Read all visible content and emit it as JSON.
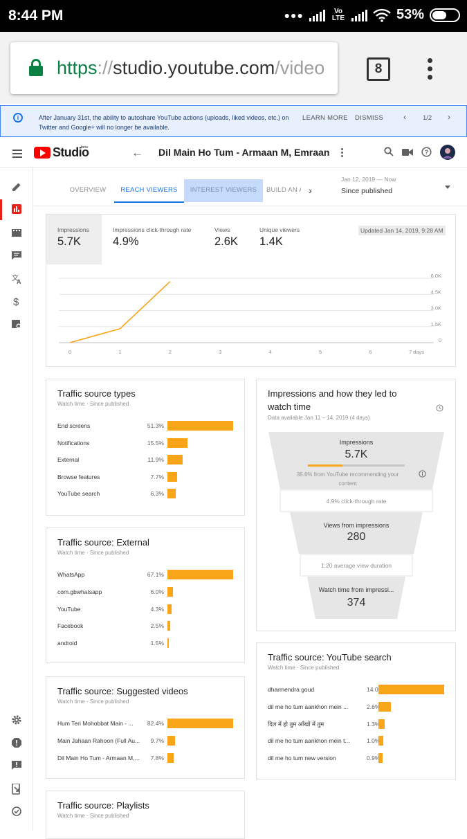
{
  "statusbar": {
    "time": "8:44 PM",
    "network": "Vo LTE",
    "battery": "53%"
  },
  "browser": {
    "url_scheme": "https",
    "url_sep": "://",
    "url_host": "studio.youtube.com",
    "url_path": "/video",
    "tab_count": "8"
  },
  "banner": {
    "message": "After January 31st, the ability to autoshare YouTube actions (uploads, liked videos, etc.) on Twitter and Google+ will no longer be available.",
    "learn_more": "LEARN MORE",
    "dismiss": "DISMISS",
    "pager": "1/2"
  },
  "header": {
    "logo": "Studio",
    "beta": "beta",
    "video_title": "Dil Main Ho Tum - Armaan M, Emraan H, Shreya | Cheat India"
  },
  "tabs": [
    {
      "label": "OVERVIEW"
    },
    {
      "label": "REACH VIEWERS"
    },
    {
      "label": "INTEREST VIEWERS"
    },
    {
      "label": "BUILD AN AUDIENCE"
    }
  ],
  "date": {
    "range": "Jan 12, 2019 — Now",
    "selected": "Since published"
  },
  "metrics": [
    {
      "label": "Impressions",
      "value": "5.7K"
    },
    {
      "label": "Impressions click-through rate",
      "value": "4.9%"
    },
    {
      "label": "Views",
      "value": "2.6K"
    },
    {
      "label": "Unique viewers",
      "value": "1.4K"
    }
  ],
  "updated": "Updated Jan 14, 2019, 9:28 AM",
  "chart_data": {
    "type": "line",
    "x": [
      0,
      1,
      2
    ],
    "series": [
      {
        "values": [
          0,
          1300,
          5700
        ],
        "color": "#f9a51a"
      }
    ],
    "x_ticks": [
      "0",
      "1",
      "2",
      "3",
      "4",
      "5",
      "6",
      "7 days"
    ],
    "y_ticks": [
      "0",
      "1.5K",
      "3.0K",
      "4.5K",
      "6.0K"
    ],
    "xlim": [
      0,
      7
    ],
    "ylim": [
      0,
      6000
    ],
    "grid": true
  },
  "traffic_source_types": {
    "title": "Traffic source types",
    "subtitle": "Watch time · Since published",
    "rows": [
      {
        "label": "End screens",
        "value": "51.3%",
        "pct": 51.3
      },
      {
        "label": "Notifications",
        "value": "15.5%",
        "pct": 15.5
      },
      {
        "label": "External",
        "value": "11.9%",
        "pct": 11.9
      },
      {
        "label": "Browse features",
        "value": "7.7%",
        "pct": 7.7
      },
      {
        "label": "YouTube search",
        "value": "6.3%",
        "pct": 6.3
      }
    ]
  },
  "traffic_external": {
    "title": "Traffic source: External",
    "subtitle": "Watch time · Since published",
    "rows": [
      {
        "label": "WhatsApp",
        "value": "67.1%",
        "pct": 67.1
      },
      {
        "label": "com.gbwhatsapp",
        "value": "6.0%",
        "pct": 6.0
      },
      {
        "label": "YouTube",
        "value": "4.3%",
        "pct": 4.3
      },
      {
        "label": "Facebook",
        "value": "2.5%",
        "pct": 2.5
      },
      {
        "label": "android",
        "value": "1.5%",
        "pct": 1.5
      }
    ]
  },
  "traffic_suggested": {
    "title": "Traffic source: Suggested videos",
    "subtitle": "Watch time · Since published",
    "rows": [
      {
        "label": "Hum Teri Mohobbat Main - ...",
        "value": "82.4%",
        "pct": 82.4
      },
      {
        "label": "Main Jahaan Rahoon (Full Au...",
        "value": "9.7%",
        "pct": 9.7
      },
      {
        "label": "Dil Main Ho Tum - Armaan M,...",
        "value": "7.8%",
        "pct": 7.8
      }
    ]
  },
  "traffic_playlists": {
    "title": "Traffic source: Playlists",
    "subtitle": "Watch time · Since published"
  },
  "funnel": {
    "title": "Impressions and how they led to watch time",
    "subtitle": "Data available Jan 11 – 14, 2019 (4 days)",
    "impressions_label": "Impressions",
    "impressions_value": "5.7K",
    "recommend_pct": 0.356,
    "recommend_text": "35.6% from YouTube recommending your content",
    "ctr_text": "4.9% click-through rate",
    "views_label": "Views from impressions",
    "views_value": "280",
    "avg_text": "1:20 average view duration",
    "watch_label": "Watch time from impressi...",
    "watch_value": "374"
  },
  "traffic_search": {
    "title": "Traffic source: YouTube search",
    "subtitle": "Watch time · Since published",
    "rows": [
      {
        "label": "dharmendra goud",
        "value": "14.0%",
        "pct": 14.0
      },
      {
        "label": "dil me ho tum aankhon mein ...",
        "value": "2.6%",
        "pct": 2.6
      },
      {
        "label": "दिल में हो तुम आँखों में तुम",
        "value": "1.3%",
        "pct": 1.3
      },
      {
        "label": "dil me ho tum aankhon mein t...",
        "value": "1.0%",
        "pct": 1.0
      },
      {
        "label": "dil me ho tum new version",
        "value": "0.9%",
        "pct": 0.9
      }
    ]
  }
}
